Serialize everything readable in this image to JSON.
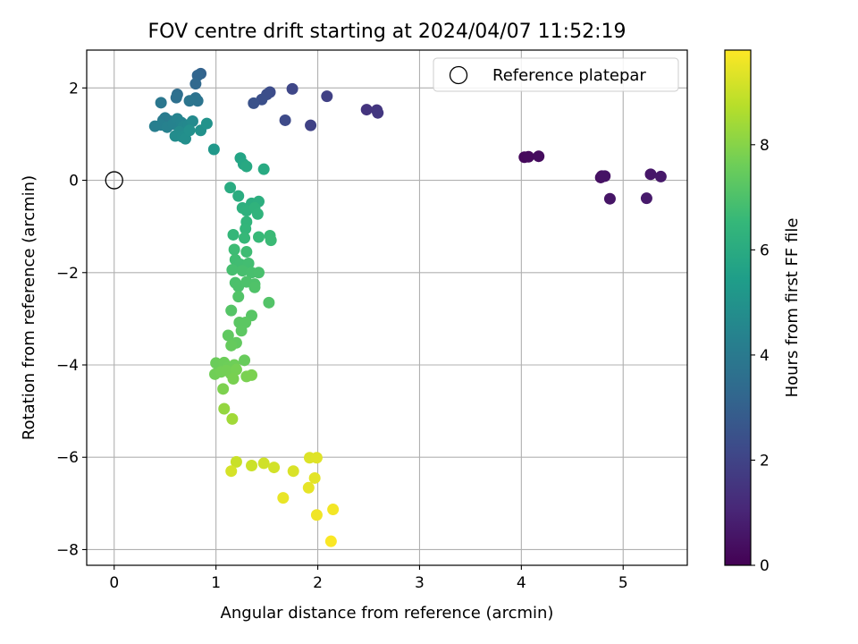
{
  "chart_data": {
    "type": "scatter",
    "title": "FOV centre drift starting at 2024/04/07 11:52:19",
    "xlabel": "Angular distance from reference (arcmin)",
    "ylabel": "Rotation from reference (arcmin)",
    "xlim": [
      -0.27,
      5.63
    ],
    "ylim": [
      -8.34,
      2.82
    ],
    "xticks": [
      0,
      1,
      2,
      3,
      4,
      5
    ],
    "yticks": [
      2,
      0,
      -2,
      -4,
      -6,
      -8
    ],
    "xtick_labels": [
      "0",
      "1",
      "2",
      "3",
      "4",
      "5"
    ],
    "ytick_labels": [
      "2",
      "0",
      "−2",
      "−4",
      "−6",
      "−8"
    ],
    "grid": true,
    "legend": {
      "position": "top-right",
      "entries": [
        "Reference platepar"
      ]
    },
    "reference_point": {
      "x": 0,
      "y": 0,
      "label": "Reference platepar"
    },
    "colorbar": {
      "label": "Hours from first FF file",
      "min": 0,
      "max": 9.8,
      "ticks": [
        0,
        2,
        4,
        6,
        8
      ],
      "tick_labels": [
        "0",
        "2",
        "4",
        "6",
        "8"
      ],
      "colormap": "viridis",
      "stops": [
        "#440154",
        "#482878",
        "#3e4989",
        "#31688e",
        "#26828e",
        "#1f9e89",
        "#35b779",
        "#6ece58",
        "#b5de2b",
        "#fde725"
      ]
    },
    "points": [
      {
        "x": 4.03,
        "y": 0.5,
        "c": 0.2
      },
      {
        "x": 4.07,
        "y": 0.51,
        "c": 0.25
      },
      {
        "x": 4.17,
        "y": 0.52,
        "c": 0.3
      },
      {
        "x": 4.78,
        "y": 0.06,
        "c": 0.4
      },
      {
        "x": 4.79,
        "y": 0.09,
        "c": 0.45
      },
      {
        "x": 4.82,
        "y": 0.09,
        "c": 0.5
      },
      {
        "x": 4.87,
        "y": -0.4,
        "c": 0.55
      },
      {
        "x": 5.27,
        "y": 0.13,
        "c": 0.6
      },
      {
        "x": 5.37,
        "y": 0.08,
        "c": 0.65
      },
      {
        "x": 5.23,
        "y": -0.39,
        "c": 0.7
      },
      {
        "x": 2.48,
        "y": 1.53,
        "c": 1.5
      },
      {
        "x": 2.58,
        "y": 1.52,
        "c": 1.55
      },
      {
        "x": 2.59,
        "y": 1.46,
        "c": 1.6
      },
      {
        "x": 2.09,
        "y": 1.82,
        "c": 1.9
      },
      {
        "x": 1.93,
        "y": 1.19,
        "c": 1.95
      },
      {
        "x": 1.75,
        "y": 1.98,
        "c": 2.1
      },
      {
        "x": 1.68,
        "y": 1.3,
        "c": 2.2
      },
      {
        "x": 1.53,
        "y": 1.91,
        "c": 2.3
      },
      {
        "x": 1.5,
        "y": 1.86,
        "c": 2.35
      },
      {
        "x": 1.45,
        "y": 1.75,
        "c": 2.4
      },
      {
        "x": 1.37,
        "y": 1.67,
        "c": 2.5
      },
      {
        "x": 0.85,
        "y": 2.31,
        "c": 3.1
      },
      {
        "x": 0.82,
        "y": 2.27,
        "c": 3.2
      },
      {
        "x": 0.8,
        "y": 2.09,
        "c": 3.3
      },
      {
        "x": 0.62,
        "y": 1.86,
        "c": 3.5
      },
      {
        "x": 0.61,
        "y": 1.79,
        "c": 3.6
      },
      {
        "x": 0.8,
        "y": 1.78,
        "c": 3.7
      },
      {
        "x": 0.82,
        "y": 1.72,
        "c": 3.75
      },
      {
        "x": 0.74,
        "y": 1.72,
        "c": 3.8
      },
      {
        "x": 0.46,
        "y": 1.68,
        "c": 3.9
      },
      {
        "x": 0.48,
        "y": 1.3,
        "c": 4.0
      },
      {
        "x": 0.5,
        "y": 1.35,
        "c": 4.05
      },
      {
        "x": 0.55,
        "y": 1.28,
        "c": 4.1
      },
      {
        "x": 0.4,
        "y": 1.17,
        "c": 4.2
      },
      {
        "x": 0.46,
        "y": 1.2,
        "c": 4.25
      },
      {
        "x": 0.52,
        "y": 1.15,
        "c": 4.3
      },
      {
        "x": 0.58,
        "y": 1.22,
        "c": 4.35
      },
      {
        "x": 0.62,
        "y": 1.33,
        "c": 4.4
      },
      {
        "x": 0.66,
        "y": 1.25,
        "c": 4.45
      },
      {
        "x": 0.7,
        "y": 1.12,
        "c": 4.5
      },
      {
        "x": 0.68,
        "y": 1.17,
        "c": 4.55
      },
      {
        "x": 0.73,
        "y": 1.2,
        "c": 4.6
      },
      {
        "x": 0.77,
        "y": 1.28,
        "c": 4.65
      },
      {
        "x": 0.64,
        "y": 1.05,
        "c": 4.7
      },
      {
        "x": 0.6,
        "y": 0.96,
        "c": 4.75
      },
      {
        "x": 0.67,
        "y": 0.94,
        "c": 4.8
      },
      {
        "x": 0.7,
        "y": 0.9,
        "c": 4.85
      },
      {
        "x": 0.74,
        "y": 1.08,
        "c": 4.9
      },
      {
        "x": 0.85,
        "y": 1.08,
        "c": 4.95
      },
      {
        "x": 0.91,
        "y": 1.23,
        "c": 5.0
      },
      {
        "x": 0.98,
        "y": 0.67,
        "c": 5.2
      },
      {
        "x": 1.24,
        "y": 0.48,
        "c": 5.7
      },
      {
        "x": 1.27,
        "y": 0.35,
        "c": 5.8
      },
      {
        "x": 1.3,
        "y": 0.3,
        "c": 5.9
      },
      {
        "x": 1.47,
        "y": 0.24,
        "c": 5.95
      },
      {
        "x": 1.14,
        "y": -0.16,
        "c": 6.0
      },
      {
        "x": 1.22,
        "y": -0.34,
        "c": 6.05
      },
      {
        "x": 1.35,
        "y": -0.5,
        "c": 6.1
      },
      {
        "x": 1.42,
        "y": -0.46,
        "c": 6.15
      },
      {
        "x": 1.26,
        "y": -0.6,
        "c": 6.2
      },
      {
        "x": 1.3,
        "y": -0.66,
        "c": 6.25
      },
      {
        "x": 1.38,
        "y": -0.6,
        "c": 6.3
      },
      {
        "x": 1.41,
        "y": -0.73,
        "c": 6.35
      },
      {
        "x": 1.3,
        "y": -0.9,
        "c": 6.4
      },
      {
        "x": 1.29,
        "y": -1.05,
        "c": 6.45
      },
      {
        "x": 1.17,
        "y": -1.18,
        "c": 6.5
      },
      {
        "x": 1.28,
        "y": -1.25,
        "c": 6.55
      },
      {
        "x": 1.42,
        "y": -1.23,
        "c": 6.6
      },
      {
        "x": 1.53,
        "y": -1.2,
        "c": 6.62
      },
      {
        "x": 1.54,
        "y": -1.3,
        "c": 6.65
      },
      {
        "x": 1.18,
        "y": -1.5,
        "c": 6.7
      },
      {
        "x": 1.3,
        "y": -1.55,
        "c": 6.72
      },
      {
        "x": 1.19,
        "y": -1.72,
        "c": 6.75
      },
      {
        "x": 1.24,
        "y": -1.82,
        "c": 6.78
      },
      {
        "x": 1.32,
        "y": -1.8,
        "c": 6.8
      },
      {
        "x": 1.16,
        "y": -1.94,
        "c": 6.85
      },
      {
        "x": 1.26,
        "y": -1.96,
        "c": 6.88
      },
      {
        "x": 1.35,
        "y": -2.0,
        "c": 6.9
      },
      {
        "x": 1.42,
        "y": -2.0,
        "c": 6.92
      },
      {
        "x": 1.19,
        "y": -2.22,
        "c": 6.95
      },
      {
        "x": 1.22,
        "y": -2.3,
        "c": 6.98
      },
      {
        "x": 1.3,
        "y": -2.2,
        "c": 7.0
      },
      {
        "x": 1.38,
        "y": -2.25,
        "c": 7.02
      },
      {
        "x": 1.38,
        "y": -2.32,
        "c": 7.05
      },
      {
        "x": 1.22,
        "y": -2.52,
        "c": 7.08
      },
      {
        "x": 1.52,
        "y": -2.65,
        "c": 7.1
      },
      {
        "x": 1.15,
        "y": -2.82,
        "c": 7.15
      },
      {
        "x": 1.35,
        "y": -2.93,
        "c": 7.2
      },
      {
        "x": 1.23,
        "y": -3.08,
        "c": 7.25
      },
      {
        "x": 1.29,
        "y": -3.08,
        "c": 7.28
      },
      {
        "x": 1.25,
        "y": -3.26,
        "c": 7.3
      },
      {
        "x": 1.12,
        "y": -3.36,
        "c": 7.35
      },
      {
        "x": 1.2,
        "y": -3.52,
        "c": 7.4
      },
      {
        "x": 1.15,
        "y": -3.58,
        "c": 7.45
      },
      {
        "x": 1.28,
        "y": -3.9,
        "c": 7.5
      },
      {
        "x": 1.0,
        "y": -3.96,
        "c": 7.55
      },
      {
        "x": 1.08,
        "y": -3.95,
        "c": 7.58
      },
      {
        "x": 1.12,
        "y": -4.05,
        "c": 7.6
      },
      {
        "x": 1.18,
        "y": -4.0,
        "c": 7.62
      },
      {
        "x": 0.99,
        "y": -4.2,
        "c": 7.65
      },
      {
        "x": 1.05,
        "y": -4.15,
        "c": 7.68
      },
      {
        "x": 1.1,
        "y": -4.12,
        "c": 7.7
      },
      {
        "x": 1.15,
        "y": -4.2,
        "c": 7.72
      },
      {
        "x": 1.2,
        "y": -4.1,
        "c": 7.75
      },
      {
        "x": 1.17,
        "y": -4.3,
        "c": 7.78
      },
      {
        "x": 1.3,
        "y": -4.25,
        "c": 7.8
      },
      {
        "x": 1.35,
        "y": -4.22,
        "c": 7.82
      },
      {
        "x": 1.07,
        "y": -4.52,
        "c": 7.85
      },
      {
        "x": 1.08,
        "y": -4.95,
        "c": 8.2
      },
      {
        "x": 1.16,
        "y": -5.17,
        "c": 8.4
      },
      {
        "x": 1.2,
        "y": -6.1,
        "c": 9.0
      },
      {
        "x": 1.35,
        "y": -6.18,
        "c": 9.05
      },
      {
        "x": 1.47,
        "y": -6.13,
        "c": 9.1
      },
      {
        "x": 1.57,
        "y": -6.22,
        "c": 9.15
      },
      {
        "x": 1.15,
        "y": -6.3,
        "c": 9.2
      },
      {
        "x": 1.76,
        "y": -6.3,
        "c": 9.25
      },
      {
        "x": 1.92,
        "y": -6.01,
        "c": 9.3
      },
      {
        "x": 1.99,
        "y": -6.01,
        "c": 9.35
      },
      {
        "x": 1.97,
        "y": -6.45,
        "c": 9.4
      },
      {
        "x": 1.91,
        "y": -6.66,
        "c": 9.45
      },
      {
        "x": 1.66,
        "y": -6.88,
        "c": 9.5
      },
      {
        "x": 1.99,
        "y": -7.25,
        "c": 9.6
      },
      {
        "x": 2.15,
        "y": -7.13,
        "c": 9.65
      },
      {
        "x": 2.13,
        "y": -7.82,
        "c": 9.75
      }
    ]
  }
}
